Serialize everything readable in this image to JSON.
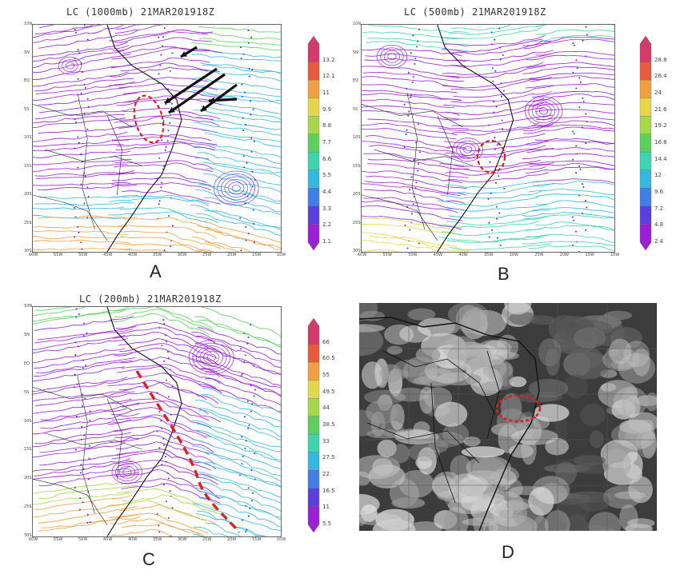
{
  "panels": [
    {
      "id": "A",
      "title": "LC (1000mb) 21MAR201918Z",
      "letter": "A",
      "colorbar": [
        "13.2",
        "12.1",
        "11",
        "9.9",
        "8.8",
        "7.7",
        "6.6",
        "5.5",
        "4.4",
        "3.3",
        "2.2",
        "1.1"
      ],
      "lat_labels": [
        "10N",
        "5N",
        "EQ",
        "5S",
        "10S",
        "15S",
        "20S",
        "25S",
        "30S"
      ],
      "lon_labels": [
        "60W",
        "55W",
        "50W",
        "45W",
        "40W",
        "35W",
        "30W",
        "25W",
        "20W",
        "15W",
        "10W"
      ]
    },
    {
      "id": "B",
      "title": "LC (500mb) 21MAR201918Z",
      "letter": "B",
      "colorbar": [
        "28.8",
        "26.4",
        "24",
        "21.6",
        "19.2",
        "16.8",
        "14.4",
        "12",
        "9.6",
        "7.2",
        "4.8",
        "2.4"
      ],
      "lat_labels": [
        "10N",
        "5N",
        "EQ",
        "5S",
        "10S",
        "15S",
        "20S",
        "25S",
        "30S"
      ],
      "lon_labels": [
        "60W",
        "55W",
        "50W",
        "45W",
        "40W",
        "35W",
        "30W",
        "25W",
        "20W",
        "15W",
        "10W"
      ]
    },
    {
      "id": "C",
      "title": "LC (200mb) 21MAR201918Z",
      "letter": "C",
      "colorbar": [
        "66",
        "60.5",
        "55",
        "49.5",
        "44",
        "38.5",
        "33",
        "27.5",
        "22",
        "16.5",
        "11",
        "5.5"
      ],
      "lat_labels": [
        "10N",
        "5N",
        "EQ",
        "5S",
        "10S",
        "15S",
        "20S",
        "25S",
        "30S"
      ],
      "lon_labels": [
        "60W",
        "55W",
        "50W",
        "45W",
        "40W",
        "35W",
        "30W",
        "25W",
        "20W",
        "15W",
        "10W"
      ]
    },
    {
      "id": "D",
      "letter": "D"
    }
  ],
  "colors": {
    "rainbow": [
      "#9a1fd6",
      "#5a3fe0",
      "#3f7fe8",
      "#35b8e0",
      "#3fd4b0",
      "#5ccf5c",
      "#a6d84a",
      "#e4d64a",
      "#f0a040",
      "#ea5a3a",
      "#d43a6a"
    ],
    "annotation_red": "#e02020",
    "arrow_black": "#111111",
    "satellite_dark": "#3a3a3a"
  }
}
